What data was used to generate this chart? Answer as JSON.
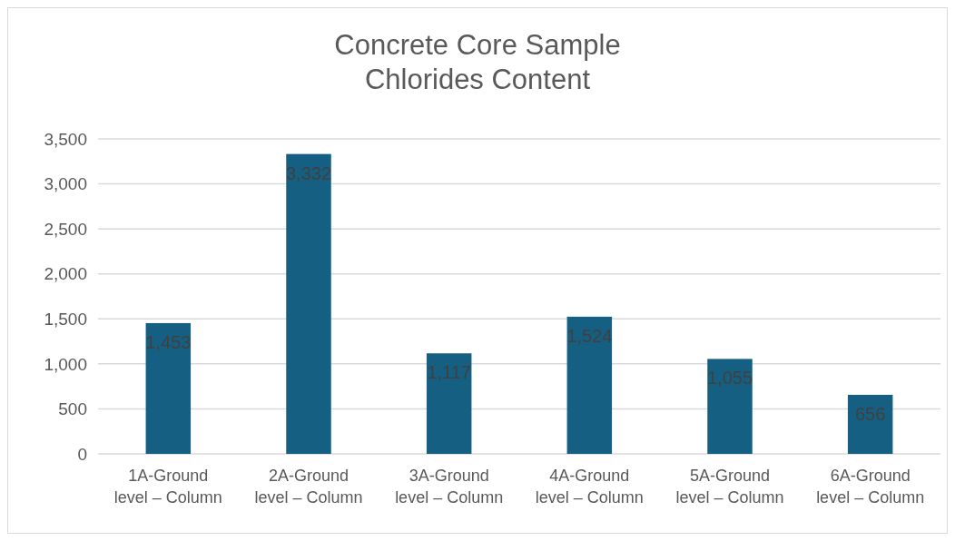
{
  "chart_data": {
    "type": "bar",
    "title": "Concrete Core Sample Chlorides Content",
    "categories": [
      "1A-Ground level – Column",
      "2A-Ground level – Column",
      "3A-Ground level – Column",
      "4A-Ground level – Column",
      "5A-Ground level – Column",
      "6A-Ground level – Column"
    ],
    "values": [
      1453,
      3332,
      1117,
      1524,
      1055,
      656
    ],
    "color": "#156082",
    "ylim": [
      0,
      3500
    ],
    "yticks": [
      {
        "value": 0,
        "label": "0"
      },
      {
        "value": 500,
        "label": "500"
      },
      {
        "value": 1000,
        "label": "1,000"
      },
      {
        "value": 1500,
        "label": "1,500"
      },
      {
        "value": 2000,
        "label": "2,000"
      },
      {
        "value": 2500,
        "label": "2,500"
      },
      {
        "value": 3000,
        "label": "3,000"
      },
      {
        "value": 3500,
        "label": "3,500"
      }
    ],
    "value_labels": [
      "1,453",
      "3,332",
      "1,117",
      "1,524",
      "1,055",
      "656"
    ],
    "grid": "y"
  }
}
